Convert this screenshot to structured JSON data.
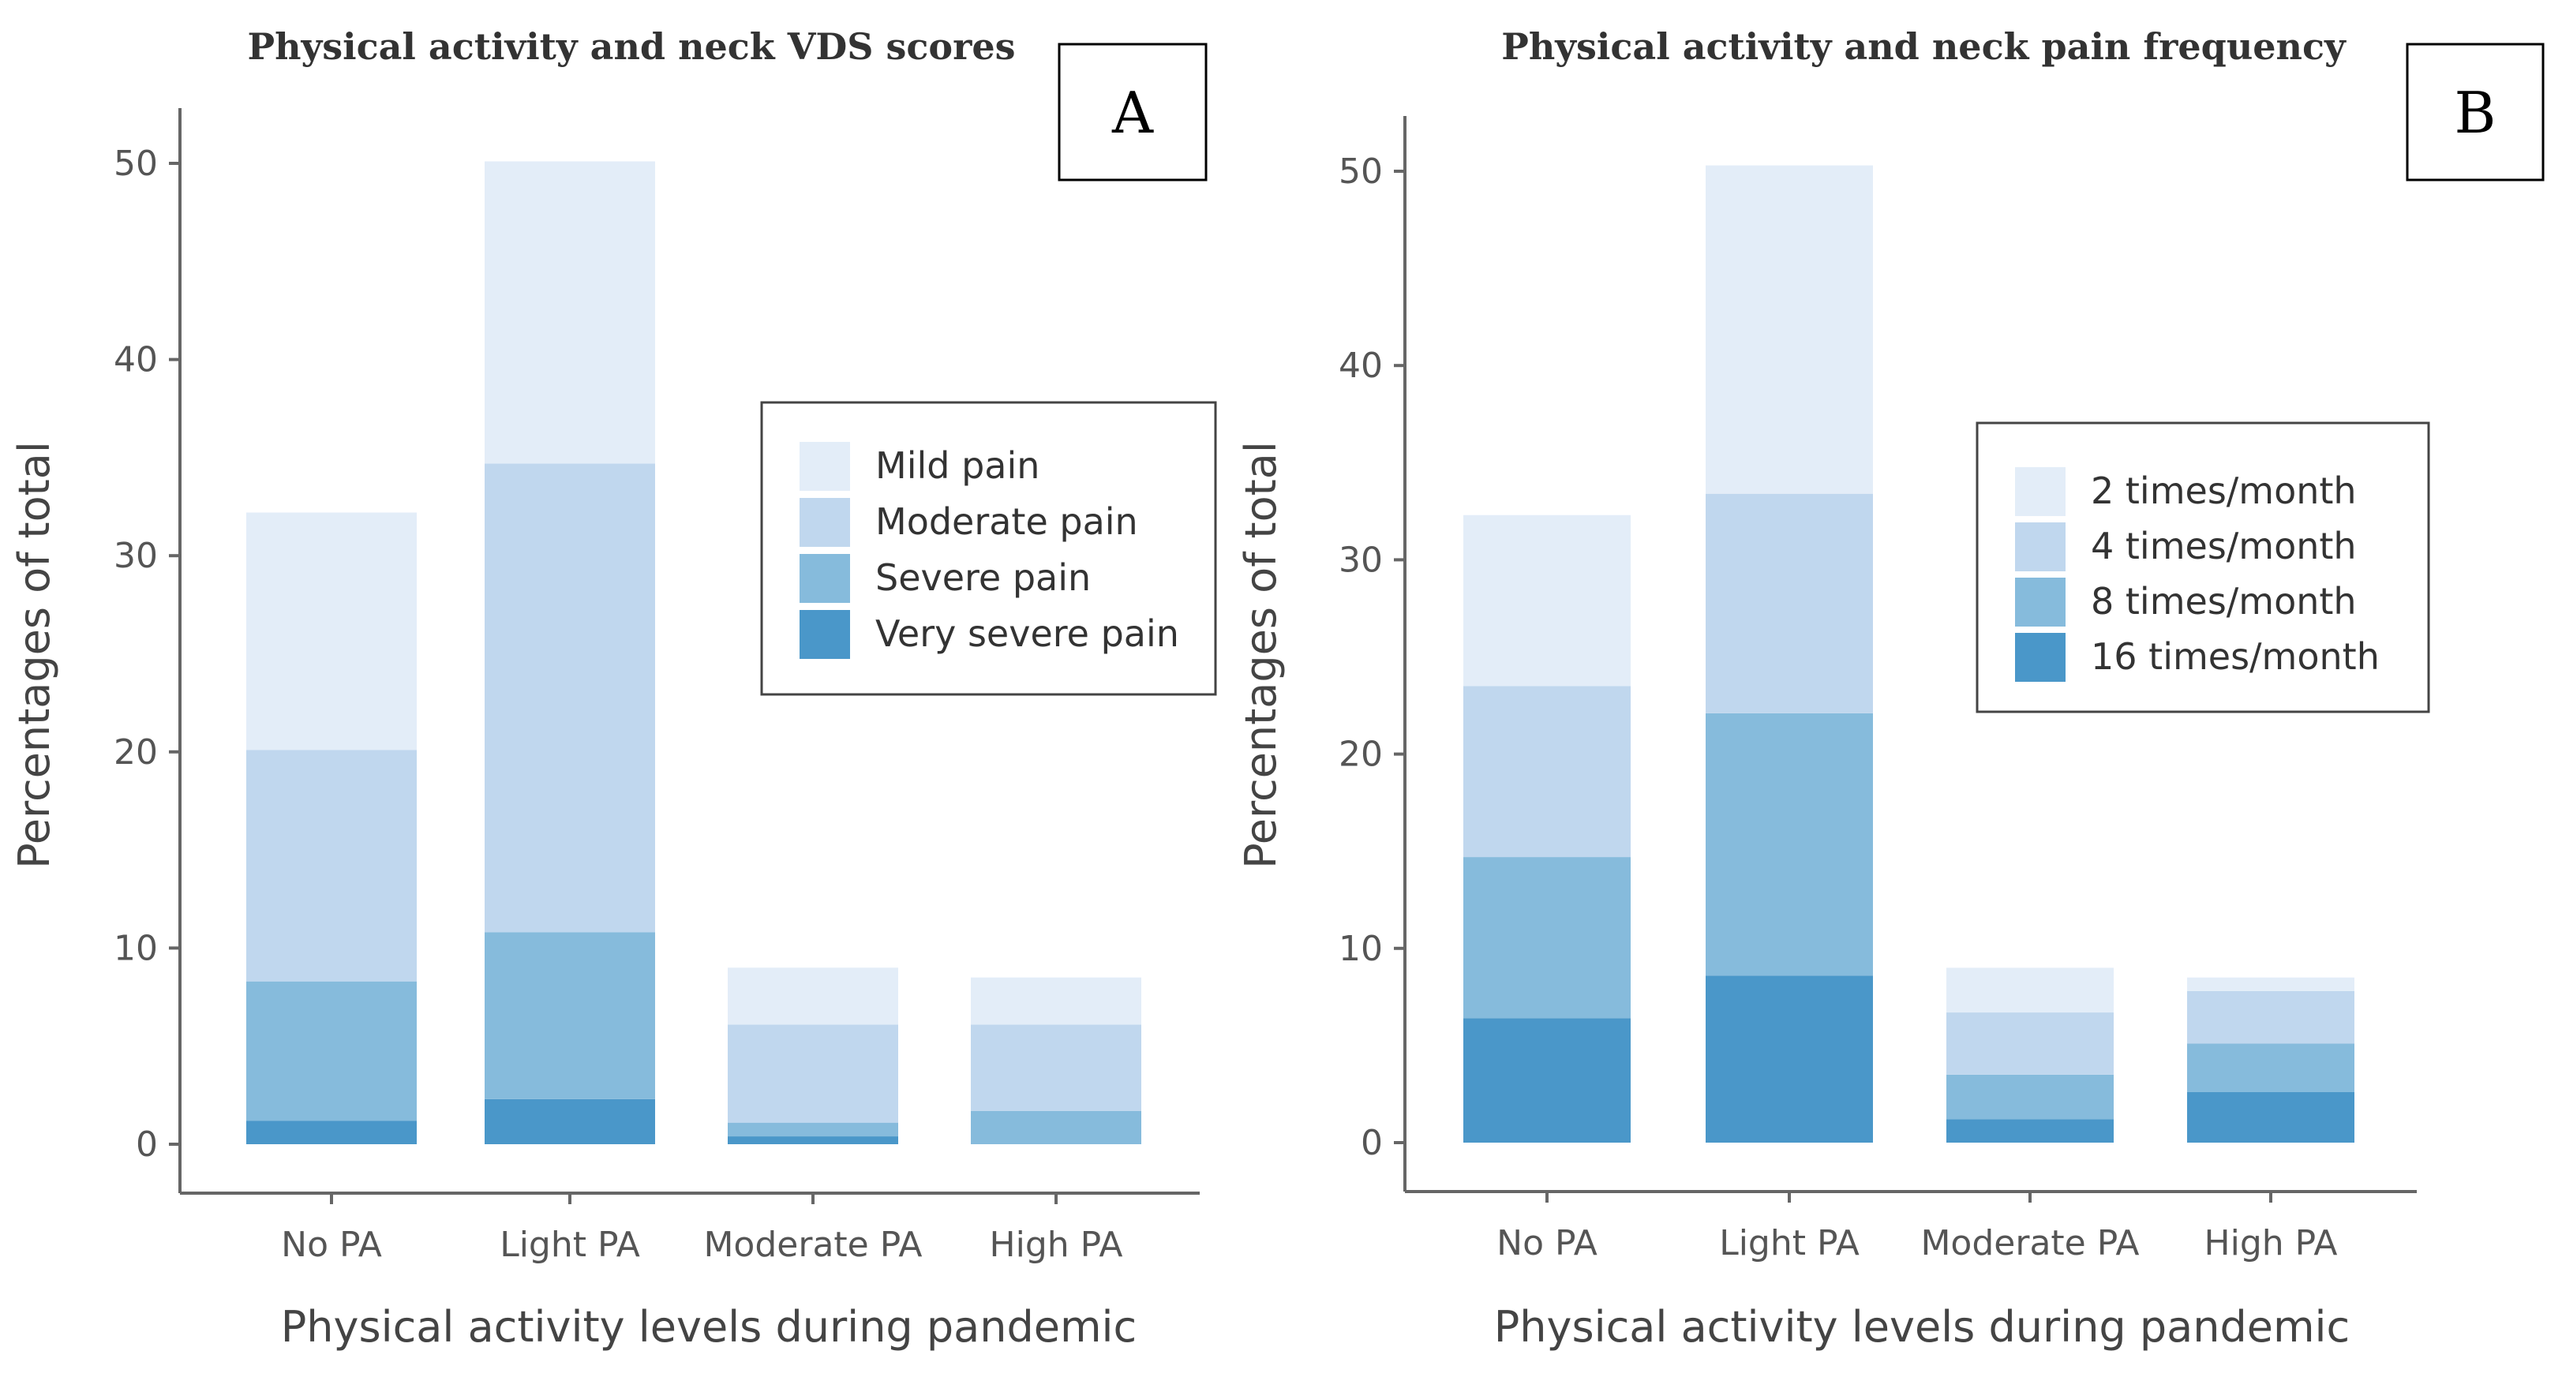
{
  "colors": {
    "level1": "#e3edf8",
    "level2": "#c0d7ee",
    "level3": "#86bbdc",
    "level4": "#4a97c9",
    "axis": "#666666"
  },
  "chart_data": [
    {
      "panel": "A",
      "type": "bar",
      "stacked": true,
      "title": "Physical activity and neck VDS scores",
      "xlabel": "Physical activity levels during pandemic",
      "ylabel": "Percentages of total",
      "ylim": [
        0,
        50
      ],
      "yticks": [
        "0",
        "10",
        "20",
        "30",
        "40",
        "50"
      ],
      "grid": false,
      "legend_position": "center-right",
      "categories": [
        "No PA",
        "Light PA",
        "Moderate PA",
        "High PA"
      ],
      "series": [
        {
          "name": "Very severe pain",
          "values": [
            1.2,
            2.3,
            0.4,
            0
          ]
        },
        {
          "name": "Severe pain",
          "values": [
            7.1,
            8.5,
            0.7,
            1.7
          ]
        },
        {
          "name": "Moderate pain",
          "values": [
            11.8,
            23.9,
            5.0,
            4.4
          ]
        },
        {
          "name": "Mild pain",
          "values": [
            12.1,
            15.4,
            2.9,
            2.4
          ]
        }
      ],
      "legend": [
        "Mild pain",
        "Moderate pain",
        "Severe pain",
        "Very severe pain"
      ]
    },
    {
      "panel": "B",
      "type": "bar",
      "stacked": true,
      "title": "Physical activity and neck pain frequency",
      "xlabel": "Physical activity levels during pandemic",
      "ylabel": "Percentages of total",
      "ylim": [
        0,
        50
      ],
      "yticks": [
        "0",
        "10",
        "20",
        "30",
        "40",
        "50"
      ],
      "grid": false,
      "legend_position": "center-right",
      "categories": [
        "No PA",
        "Light PA",
        "Moderate PA",
        "High PA"
      ],
      "series": [
        {
          "name": "16 times/month",
          "values": [
            6.4,
            8.6,
            1.2,
            2.6
          ]
        },
        {
          "name": "8 times/month",
          "values": [
            8.3,
            13.5,
            2.3,
            2.5
          ]
        },
        {
          "name": "4 times/month",
          "values": [
            8.8,
            11.3,
            3.2,
            2.7
          ]
        },
        {
          "name": "2 times/month",
          "values": [
            8.8,
            16.9,
            2.3,
            0.7
          ]
        }
      ],
      "legend": [
        "2 times/month",
        "4 times/month",
        "8 times/month",
        "16 times/month"
      ]
    }
  ]
}
